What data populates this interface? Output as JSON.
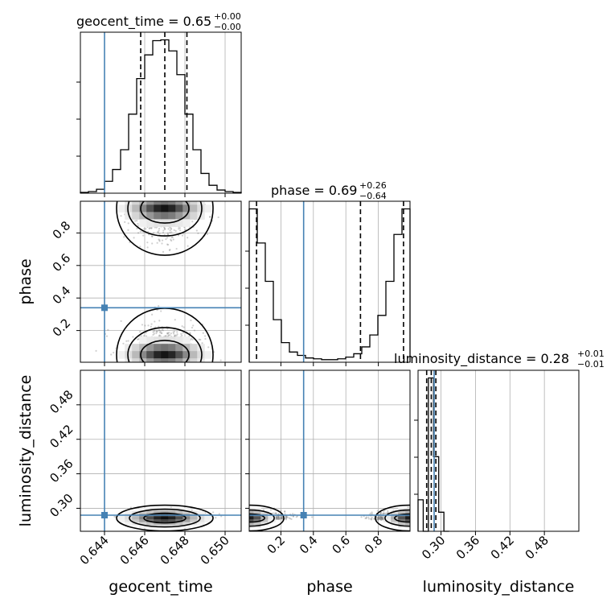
{
  "chart_data": {
    "type": "corner",
    "params": [
      "geocent_time",
      "phase",
      "luminosity_distance"
    ],
    "truth": {
      "geocent_time": 0.644,
      "phase": 0.34,
      "luminosity_distance": 0.288
    },
    "axis_ranges": {
      "geocent_time": [
        0.6428,
        0.6508
      ],
      "phase": [
        0.005,
        0.995
      ],
      "luminosity_distance": [
        0.26,
        0.54
      ]
    },
    "ticks": {
      "geocent_time": {
        "values": [
          0.644,
          0.646,
          0.648,
          0.65
        ],
        "labels": [
          "0.644",
          "0.646",
          "0.648",
          "0.650"
        ]
      },
      "phase": {
        "values": [
          0.2,
          0.4,
          0.6,
          0.8
        ],
        "labels": [
          "0.2",
          "0.4",
          "0.6",
          "0.8"
        ]
      },
      "luminosity_distance": {
        "values": [
          0.3,
          0.36,
          0.42,
          0.48
        ],
        "labels": [
          "0.30",
          "0.36",
          "0.42",
          "0.48"
        ]
      }
    },
    "axis_labels": {
      "geocent_time": "geocent_time",
      "phase": "phase",
      "luminosity_distance": "luminosity_distance"
    },
    "marginals": {
      "geocent_time": {
        "title": {
          "main": "geocent_time = 0.65",
          "sup": "+0.00",
          "sub": "−0.00"
        },
        "quantiles": [
          0.6458,
          0.647,
          0.6481
        ],
        "edges": [
          0.6428,
          0.6432,
          0.6436,
          0.644,
          0.6444,
          0.6448,
          0.6452,
          0.6456,
          0.646,
          0.6464,
          0.6468,
          0.6472,
          0.6476,
          0.648,
          0.6484,
          0.6488,
          0.6492,
          0.6496,
          0.65,
          0.6504,
          0.6508
        ],
        "counts": [
          1,
          2,
          5,
          15,
          30,
          55,
          100,
          145,
          175,
          193,
          194,
          180,
          150,
          100,
          55,
          25,
          10,
          4,
          2,
          1
        ]
      },
      "phase": {
        "title": {
          "main": "phase = 0.69",
          "sup": "+0.26",
          "sub": "−0.64"
        },
        "quantiles": [
          0.05,
          0.69,
          0.955
        ],
        "edges": [
          0.005,
          0.0545,
          0.104,
          0.1535,
          0.203,
          0.2525,
          0.302,
          0.3515,
          0.401,
          0.4505,
          0.5,
          0.5495,
          0.599,
          0.6485,
          0.698,
          0.7475,
          0.797,
          0.8465,
          0.896,
          0.9455,
          0.995
        ],
        "counts": [
          180,
          140,
          95,
          50,
          23,
          12,
          8,
          5,
          4,
          3,
          3,
          4,
          6,
          10,
          18,
          32,
          55,
          95,
          150,
          180
        ]
      },
      "luminosity_distance": {
        "title": {
          "main": "luminosity_distance = 0.28",
          "sup": "+0.01",
          "sub": "−0.01"
        },
        "quantiles": [
          0.275,
          0.283,
          0.291
        ],
        "edges": [
          0.26,
          0.269,
          0.278,
          0.287,
          0.296,
          0.305,
          0.314
        ],
        "counts": [
          38,
          0,
          185,
          90,
          23,
          0
        ]
      }
    },
    "posterior_center": {
      "geocent_time": 0.647,
      "phase_modes": [
        0.05,
        0.95
      ],
      "luminosity_distance": 0.283
    }
  }
}
